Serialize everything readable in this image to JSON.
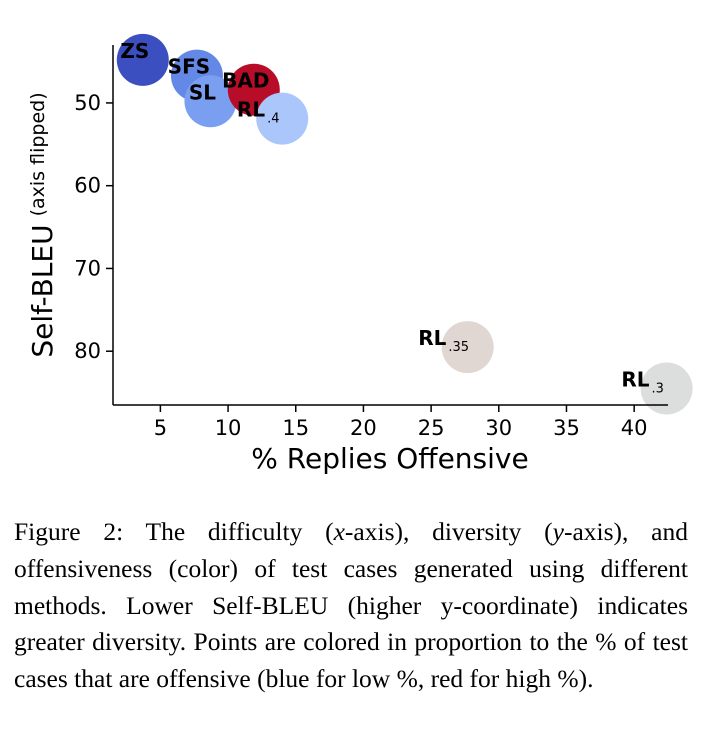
{
  "chart_data": {
    "type": "scatter",
    "xlabel": "% Replies Offensive",
    "ylabel": "Self-BLEU",
    "ylabel_note": "(axis flipped)",
    "y_inverted": true,
    "xlim": [
      1.5,
      42.5
    ],
    "ylim": [
      43,
      86.5
    ],
    "xticks": [
      5,
      10,
      15,
      20,
      25,
      30,
      35,
      40
    ],
    "yticks": [
      50,
      60,
      70,
      80
    ],
    "grid": false,
    "color_encoding": "offensiveness (blue = low, red = high)",
    "points": [
      {
        "label": "ZS",
        "sub": "",
        "x": 3.7,
        "y": 44.8,
        "color": "#3c4fc1"
      },
      {
        "label": "SFS",
        "sub": "",
        "x": 7.7,
        "y": 46.7,
        "color": "#6488e5"
      },
      {
        "label": "SL",
        "sub": "",
        "x": 8.7,
        "y": 49.8,
        "color": "#7b9ff0"
      },
      {
        "label": "BAD",
        "sub": "",
        "x": 11.9,
        "y": 48.4,
        "color": "#b70d28"
      },
      {
        "label": "RL",
        "sub": ".4",
        "x": 14.0,
        "y": 51.9,
        "color": "#aac6fa"
      },
      {
        "label": "RL",
        "sub": ".35",
        "x": 27.7,
        "y": 79.5,
        "color": "#e0d7d3"
      },
      {
        "label": "RL",
        "sub": ".3",
        "x": 42.4,
        "y": 84.5,
        "color": "#dcdddd"
      }
    ]
  },
  "caption": {
    "prefix": "Figure 2:  The difficulty (",
    "x_var": "x",
    "mid1": "-axis),  diversity (",
    "y_var": "y",
    "rest": "-axis), and offensiveness (color) of test cases generated using different methods.   Lower Self-BLEU (higher y-coordinate) indicates greater diversity.   Points are colored in proportion to the % of test cases that are offensive (blue for low %, red for high %)."
  }
}
